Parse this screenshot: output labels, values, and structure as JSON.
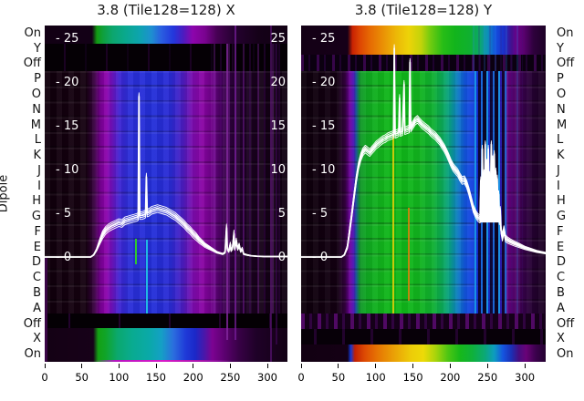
{
  "titles": {
    "left": "3.8 (Tile128=128) X",
    "right": "3.8 (Tile128=128) Y"
  },
  "y_axis_label": "Dipole",
  "dipole_rows_top_to_bottom": [
    "On",
    "Y",
    "Off",
    "P",
    "O",
    "N",
    "M",
    "L",
    "K",
    "J",
    "I",
    "H",
    "G",
    "F",
    "E",
    "D",
    "C",
    "B",
    "A",
    "Off",
    "X",
    "On"
  ],
  "x_ticks": [
    0,
    50,
    100,
    150,
    200,
    250,
    300
  ],
  "inner_value_ticks": [
    25,
    20,
    15,
    10,
    5,
    0
  ],
  "inner_tick_prefix": "- ",
  "colors": {
    "curve": "#ffffff",
    "text": "#000000",
    "background": "#ffffff",
    "colormap_low": "#0d000d",
    "colormap_purple": "#6e0185",
    "colormap_magenta": "#8a02a2",
    "colormap_blue": "#2030d4",
    "colormap_cyan": "#0d9cc0",
    "colormap_green": "#12b41c",
    "colormap_yellow": "#ecc907",
    "colormap_orange": "#e66103",
    "colormap_red": "#d22302"
  },
  "chart_data": {
    "type": "heatmap",
    "title": "3.8 (Tile128=128) X / Y dipole scan heatmaps with overlaid white profile traces",
    "x_range": [
      0,
      328
    ],
    "x_tick_values": [
      0,
      50,
      100,
      150,
      200,
      250,
      300
    ],
    "value_ticks": [
      25,
      20,
      15,
      10,
      5,
      0
    ],
    "rows_top_to_bottom": [
      "On",
      "Y",
      "Off",
      "P",
      "O",
      "N",
      "M",
      "L",
      "K",
      "J",
      "I",
      "H",
      "G",
      "F",
      "E",
      "D",
      "C",
      "B",
      "A",
      "Off",
      "X",
      "On"
    ],
    "legend_position": "none",
    "grid": false,
    "panels": [
      {
        "name": "X",
        "title": "3.8 (Tile128=128) X",
        "line_points": [
          [
            0,
            0.05
          ],
          [
            62,
            0.05
          ],
          [
            66,
            0.3
          ],
          [
            70,
            0.9
          ],
          [
            74,
            1.8
          ],
          [
            78,
            2.6
          ],
          [
            82,
            3.1
          ],
          [
            86,
            3.4
          ],
          [
            90,
            3.6
          ],
          [
            95,
            3.8
          ],
          [
            100,
            4.0
          ],
          [
            104,
            3.9
          ],
          [
            108,
            4.2
          ],
          [
            112,
            4.3
          ],
          [
            116,
            4.4
          ],
          [
            120,
            4.5
          ],
          [
            124,
            4.6
          ],
          [
            126,
            4.7
          ],
          [
            127,
            18.4
          ],
          [
            128,
            4.8
          ],
          [
            131,
            4.8
          ],
          [
            134,
            4.9
          ],
          [
            136,
            5.0
          ],
          [
            137,
            9.2
          ],
          [
            138,
            5.1
          ],
          [
            141,
            5.2
          ],
          [
            144,
            5.4
          ],
          [
            148,
            5.5
          ],
          [
            152,
            5.6
          ],
          [
            156,
            5.5
          ],
          [
            160,
            5.4
          ],
          [
            164,
            5.3
          ],
          [
            168,
            5.1
          ],
          [
            172,
            4.9
          ],
          [
            176,
            4.7
          ],
          [
            180,
            4.4
          ],
          [
            184,
            4.1
          ],
          [
            188,
            3.8
          ],
          [
            192,
            3.4
          ],
          [
            196,
            3.1
          ],
          [
            200,
            2.7
          ],
          [
            204,
            2.4
          ],
          [
            208,
            2.0
          ],
          [
            212,
            1.7
          ],
          [
            216,
            1.4
          ],
          [
            220,
            1.2
          ],
          [
            224,
            1.0
          ],
          [
            228,
            0.8
          ],
          [
            232,
            0.6
          ],
          [
            236,
            0.5
          ],
          [
            240,
            0.4
          ],
          [
            243,
            0.6
          ],
          [
            245,
            3.4
          ],
          [
            246,
            1.0
          ],
          [
            248,
            0.7
          ],
          [
            250,
            1.5
          ],
          [
            251,
            0.8
          ],
          [
            253,
            1.1
          ],
          [
            255,
            2.7
          ],
          [
            256,
            1.0
          ],
          [
            258,
            1.9
          ],
          [
            260,
            1.0
          ],
          [
            262,
            1.4
          ],
          [
            264,
            0.7
          ],
          [
            266,
            1.0
          ],
          [
            268,
            0.4
          ],
          [
            272,
            0.3
          ],
          [
            278,
            0.2
          ],
          [
            285,
            0.15
          ],
          [
            295,
            0.1
          ],
          [
            310,
            0.1
          ],
          [
            327,
            0.1
          ]
        ]
      },
      {
        "name": "Y",
        "title": "3.8 (Tile128=128) Y",
        "cluster_fill": {
          "x_min": 240,
          "x_max": 268,
          "base": 4.0
        },
        "line_points": [
          [
            0,
            0.05
          ],
          [
            54,
            0.05
          ],
          [
            58,
            0.3
          ],
          [
            62,
            1.2
          ],
          [
            65,
            3.0
          ],
          [
            68,
            5.0
          ],
          [
            71,
            7.0
          ],
          [
            74,
            9.0
          ],
          [
            77,
            10.5
          ],
          [
            80,
            11.5
          ],
          [
            83,
            12.1
          ],
          [
            86,
            12.4
          ],
          [
            89,
            12.2
          ],
          [
            92,
            12.0
          ],
          [
            95,
            12.3
          ],
          [
            98,
            12.6
          ],
          [
            101,
            12.9
          ],
          [
            104,
            13.1
          ],
          [
            107,
            13.3
          ],
          [
            110,
            13.5
          ],
          [
            113,
            13.6
          ],
          [
            116,
            13.8
          ],
          [
            119,
            13.9
          ],
          [
            122,
            14.0
          ],
          [
            124,
            14.1
          ],
          [
            125,
            23.9
          ],
          [
            126,
            14.1
          ],
          [
            129,
            14.2
          ],
          [
            131,
            14.3
          ],
          [
            132,
            18.2
          ],
          [
            133,
            14.3
          ],
          [
            136,
            14.4
          ],
          [
            138,
            19.8
          ],
          [
            139,
            14.5
          ],
          [
            142,
            14.6
          ],
          [
            145,
            14.7
          ],
          [
            146,
            22.3
          ],
          [
            147,
            14.8
          ],
          [
            150,
            15.2
          ],
          [
            153,
            15.6
          ],
          [
            156,
            15.8
          ],
          [
            159,
            15.5
          ],
          [
            162,
            15.2
          ],
          [
            165,
            15.0
          ],
          [
            168,
            14.8
          ],
          [
            171,
            14.6
          ],
          [
            174,
            14.3
          ],
          [
            177,
            14.1
          ],
          [
            180,
            13.9
          ],
          [
            183,
            13.6
          ],
          [
            186,
            13.3
          ],
          [
            189,
            12.9
          ],
          [
            192,
            12.5
          ],
          [
            195,
            12.0
          ],
          [
            198,
            11.4
          ],
          [
            201,
            10.8
          ],
          [
            204,
            10.3
          ],
          [
            207,
            10.0
          ],
          [
            210,
            9.7
          ],
          [
            213,
            9.2
          ],
          [
            216,
            8.8
          ],
          [
            219,
            8.9
          ],
          [
            222,
            8.4
          ],
          [
            225,
            7.6
          ],
          [
            228,
            6.6
          ],
          [
            231,
            5.6
          ],
          [
            234,
            5.0
          ],
          [
            237,
            4.6
          ],
          [
            240,
            4.4
          ],
          [
            241,
            8.8
          ],
          [
            242,
            5.0
          ],
          [
            243,
            12.4
          ],
          [
            244,
            6.0
          ],
          [
            245,
            9.6
          ],
          [
            246,
            5.4
          ],
          [
            247,
            12.9
          ],
          [
            248,
            7.0
          ],
          [
            249,
            10.8
          ],
          [
            250,
            6.0
          ],
          [
            251,
            12.4
          ],
          [
            252,
            7.4
          ],
          [
            253,
            9.4
          ],
          [
            254,
            5.8
          ],
          [
            255,
            12.9
          ],
          [
            256,
            7.8
          ],
          [
            257,
            11.2
          ],
          [
            258,
            6.4
          ],
          [
            259,
            11.8
          ],
          [
            260,
            7.0
          ],
          [
            261,
            9.8
          ],
          [
            262,
            5.6
          ],
          [
            263,
            9.0
          ],
          [
            264,
            4.8
          ],
          [
            265,
            7.2
          ],
          [
            266,
            4.2
          ],
          [
            267,
            5.4
          ],
          [
            268,
            3.2
          ],
          [
            270,
            2.3
          ],
          [
            272,
            3.2
          ],
          [
            274,
            2.2
          ],
          [
            277,
            2.0
          ],
          [
            281,
            1.8
          ],
          [
            286,
            1.6
          ],
          [
            292,
            1.4
          ],
          [
            300,
            1.1
          ],
          [
            308,
            0.9
          ],
          [
            316,
            0.7
          ],
          [
            322,
            0.6
          ],
          [
            328,
            0.5
          ]
        ]
      }
    ]
  }
}
